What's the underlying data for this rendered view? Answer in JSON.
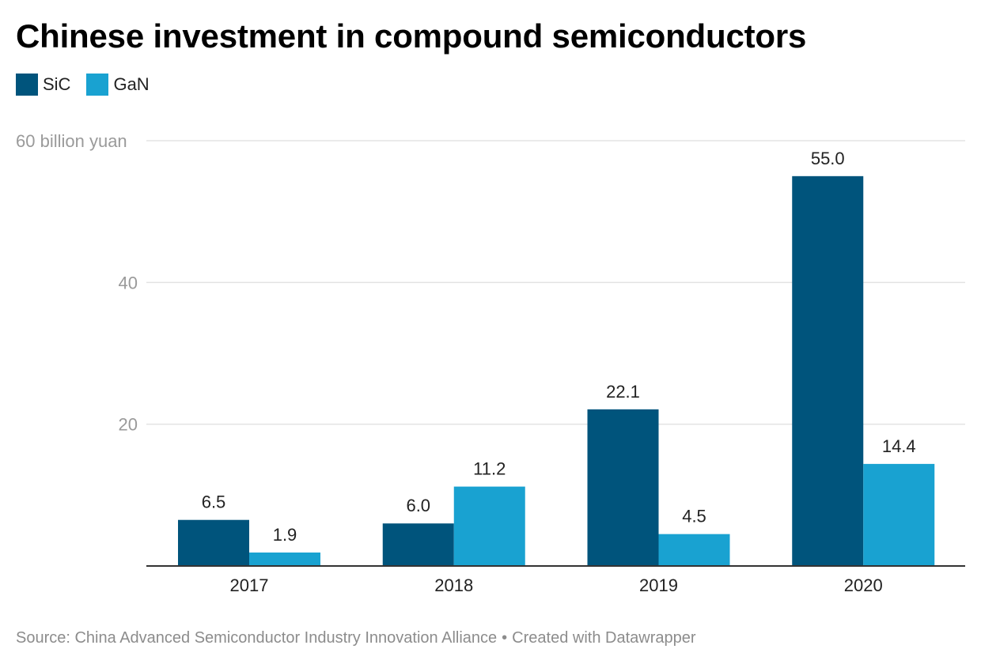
{
  "title": "Chinese investment in compound semiconductors",
  "legend": [
    {
      "label": "SiC",
      "color": "#00547c"
    },
    {
      "label": "GaN",
      "color": "#19a2d1"
    }
  ],
  "footer": {
    "source": "Source: China Advanced Semiconductor Industry Innovation Alliance",
    "separator": "•",
    "credit": "Created with Datawrapper"
  },
  "chart_data": {
    "type": "bar",
    "title": "Chinese investment in compound semiconductors",
    "categories": [
      "2017",
      "2018",
      "2019",
      "2020"
    ],
    "series": [
      {
        "name": "SiC",
        "values": [
          6.5,
          6.0,
          22.1,
          55.0
        ],
        "labels": [
          "6.5",
          "6.0",
          "22.1",
          "55.0"
        ],
        "color": "#00547c"
      },
      {
        "name": "GaN",
        "values": [
          1.9,
          11.2,
          4.5,
          14.4
        ],
        "labels": [
          "1.9",
          "11.2",
          "4.5",
          "14.4"
        ],
        "color": "#19a2d1"
      }
    ],
    "yticks": [
      20,
      40,
      60
    ],
    "ytick_labels": [
      "20",
      "40",
      "60 billion yuan"
    ],
    "ylim": [
      0,
      60
    ],
    "xlabel": "",
    "ylabel": "",
    "grid": true,
    "legend_position": "top-left"
  }
}
